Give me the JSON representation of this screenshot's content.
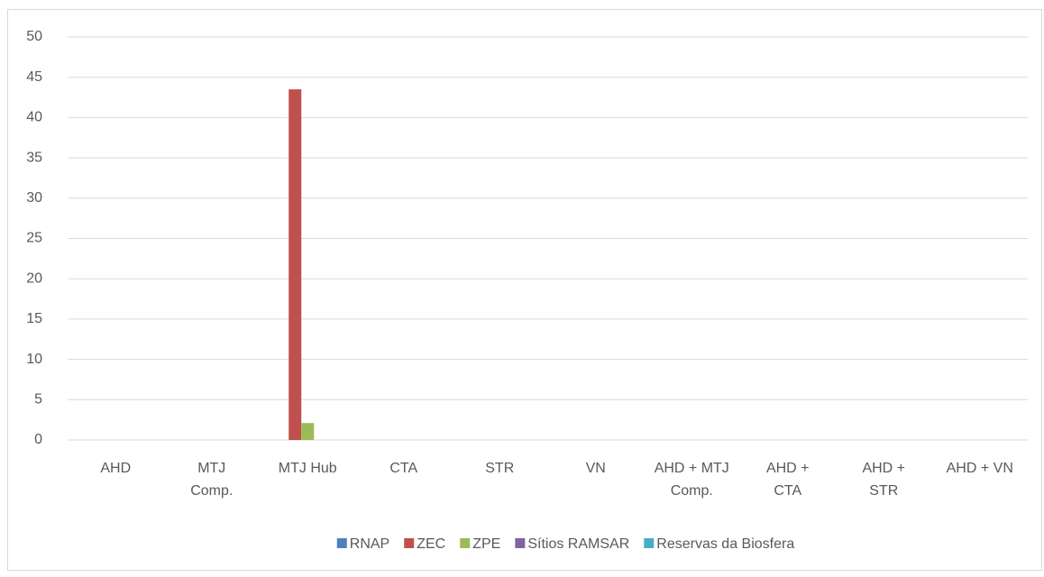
{
  "chart_data": {
    "type": "bar",
    "categories": [
      "AHD",
      "MTJ Comp.",
      "MTJ Hub",
      "CTA",
      "STR",
      "VN",
      "AHD + MTJ Comp.",
      "AHD + CTA",
      "AHD + STR",
      "AHD + VN"
    ],
    "series": [
      {
        "name": "RNAP",
        "color": "#4f81bd",
        "values": [
          0,
          0,
          0,
          0,
          0,
          0,
          0,
          0,
          0,
          0
        ]
      },
      {
        "name": "ZEC",
        "color": "#c0504d",
        "values": [
          0,
          0,
          43.5,
          0,
          0,
          0,
          0,
          0,
          0,
          0
        ]
      },
      {
        "name": "ZPE",
        "color": "#9bbb59",
        "values": [
          0,
          0,
          2.1,
          0,
          0,
          0,
          0,
          0,
          0,
          0
        ]
      },
      {
        "name": "Sítios RAMSAR",
        "color": "#8064a2",
        "values": [
          0,
          0,
          0,
          0,
          0,
          0,
          0,
          0,
          0,
          0
        ]
      },
      {
        "name": "Reservas da Biosfera",
        "color": "#4bacc6",
        "values": [
          0,
          0,
          0,
          0,
          0,
          0,
          0,
          0,
          0,
          0
        ]
      }
    ],
    "ylim": [
      0,
      50
    ],
    "yticks": [
      0,
      5,
      10,
      15,
      20,
      25,
      30,
      35,
      40,
      45,
      50
    ],
    "grid": true,
    "legend": "bottom"
  }
}
